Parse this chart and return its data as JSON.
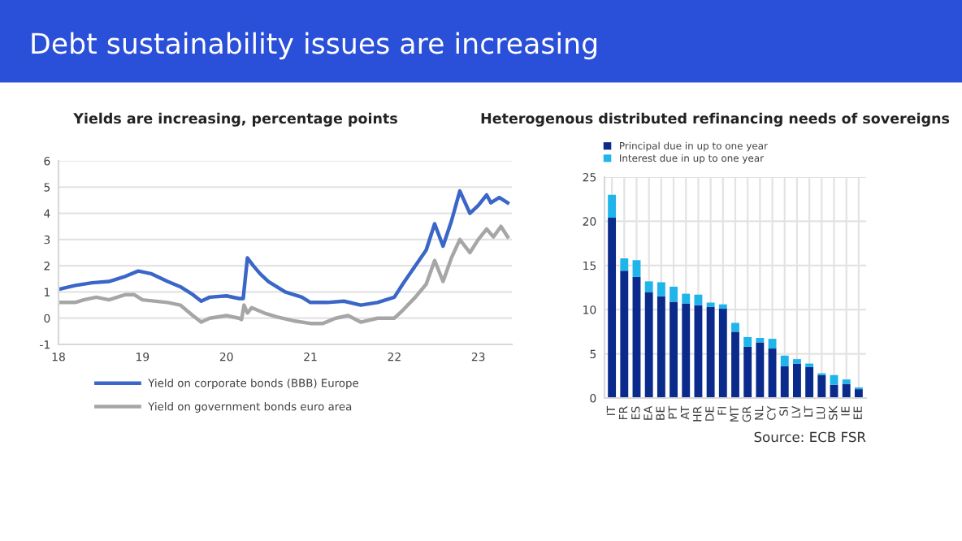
{
  "chart_data": [
    {
      "type": "other",
      "title": "Debt sustainability issues are increasing",
      "color": "#2a4fd8"
    },
    {
      "type": "line",
      "title": "Yields are increasing, percentage points",
      "xlim": [
        2018,
        2023.4
      ],
      "ylim": [
        -1,
        6
      ],
      "xticks": [
        {
          "value": 2018,
          "label": "18"
        },
        {
          "value": 2019,
          "label": "19"
        },
        {
          "value": 2020,
          "label": "20"
        },
        {
          "value": 2021,
          "label": "21"
        },
        {
          "value": 2022,
          "label": "22"
        },
        {
          "value": 2023,
          "label": "23"
        }
      ],
      "yticks": [
        -1,
        0,
        1,
        2,
        3,
        4,
        5,
        6
      ],
      "grid": "y",
      "legend": "bottom",
      "marker": "none",
      "line_style": "solid",
      "series": [
        {
          "name": "Yield on corporate bonds (BBB) Europe",
          "color": "#3a66c8",
          "x": [
            2018.0,
            2018.2,
            2018.4,
            2018.6,
            2018.8,
            2018.95,
            2019.1,
            2019.3,
            2019.45,
            2019.6,
            2019.7,
            2019.8,
            2020.0,
            2020.15,
            2020.2,
            2020.25,
            2020.32,
            2020.4,
            2020.5,
            2020.7,
            2020.9,
            2021.0,
            2021.2,
            2021.4,
            2021.6,
            2021.8,
            2022.0,
            2022.1,
            2022.25,
            2022.38,
            2022.48,
            2022.58,
            2022.68,
            2022.78,
            2022.9,
            2023.0,
            2023.1,
            2023.15,
            2023.25,
            2023.35
          ],
          "values": [
            1.1,
            1.25,
            1.35,
            1.4,
            1.6,
            1.8,
            1.7,
            1.4,
            1.2,
            0.9,
            0.65,
            0.8,
            0.85,
            0.75,
            0.75,
            2.3,
            2.0,
            1.7,
            1.4,
            1.0,
            0.8,
            0.6,
            0.6,
            0.65,
            0.5,
            0.6,
            0.8,
            1.3,
            2.0,
            2.6,
            3.6,
            2.75,
            3.7,
            4.85,
            4.0,
            4.3,
            4.7,
            4.4,
            4.6,
            4.4
          ]
        },
        {
          "name": "Yield on government bonds euro area",
          "color": "#a6a6a6",
          "x": [
            2018.0,
            2018.2,
            2018.3,
            2018.45,
            2018.6,
            2018.8,
            2018.9,
            2019.0,
            2019.3,
            2019.45,
            2019.6,
            2019.7,
            2019.8,
            2020.0,
            2020.15,
            2020.18,
            2020.21,
            2020.25,
            2020.3,
            2020.45,
            2020.6,
            2020.8,
            2021.0,
            2021.15,
            2021.3,
            2021.45,
            2021.6,
            2021.8,
            2022.0,
            2022.1,
            2022.25,
            2022.38,
            2022.48,
            2022.58,
            2022.68,
            2022.78,
            2022.9,
            2023.0,
            2023.1,
            2023.18,
            2023.27,
            2023.35
          ],
          "values": [
            0.6,
            0.6,
            0.7,
            0.8,
            0.7,
            0.9,
            0.9,
            0.7,
            0.6,
            0.5,
            0.1,
            -0.15,
            0.0,
            0.1,
            0.0,
            -0.05,
            0.5,
            0.2,
            0.4,
            0.2,
            0.05,
            -0.1,
            -0.2,
            -0.2,
            0.0,
            0.1,
            -0.15,
            0.0,
            0.0,
            0.3,
            0.8,
            1.3,
            2.2,
            1.4,
            2.3,
            3.0,
            2.5,
            3.0,
            3.4,
            3.1,
            3.5,
            3.1
          ]
        }
      ]
    },
    {
      "type": "bar",
      "stacked": true,
      "title": "Heterogenous distributed refinancing needs of sovereigns",
      "ylim": [
        0,
        25
      ],
      "yticks": [
        0,
        5,
        10,
        15,
        20,
        25
      ],
      "grid": true,
      "legend": "top left",
      "categories": [
        "IT",
        "FR",
        "ES",
        "EA",
        "BE",
        "PT",
        "AT",
        "HR",
        "DE",
        "FI",
        "MT",
        "GR",
        "NL",
        "CY",
        "SI",
        "LV",
        "LT",
        "LU",
        "SK",
        "IE",
        "EE"
      ],
      "series": [
        {
          "name": "Principal due in up to one year",
          "color": "#0a2a8c",
          "values": [
            20.4,
            14.4,
            13.7,
            12.0,
            11.5,
            10.9,
            10.7,
            10.5,
            10.3,
            10.1,
            7.5,
            5.8,
            6.3,
            5.6,
            3.6,
            3.9,
            3.5,
            2.6,
            1.5,
            1.6,
            1.0
          ]
        },
        {
          "name": "Interest due in up to one year",
          "color": "#1fb4ea",
          "values": [
            2.6,
            1.4,
            1.9,
            1.2,
            1.6,
            1.7,
            1.1,
            1.2,
            0.5,
            0.5,
            1.0,
            1.1,
            0.5,
            1.1,
            1.2,
            0.5,
            0.4,
            0.2,
            1.1,
            0.5,
            0.2
          ]
        }
      ],
      "annotations": [
        "Source: ECB FSR"
      ]
    }
  ]
}
